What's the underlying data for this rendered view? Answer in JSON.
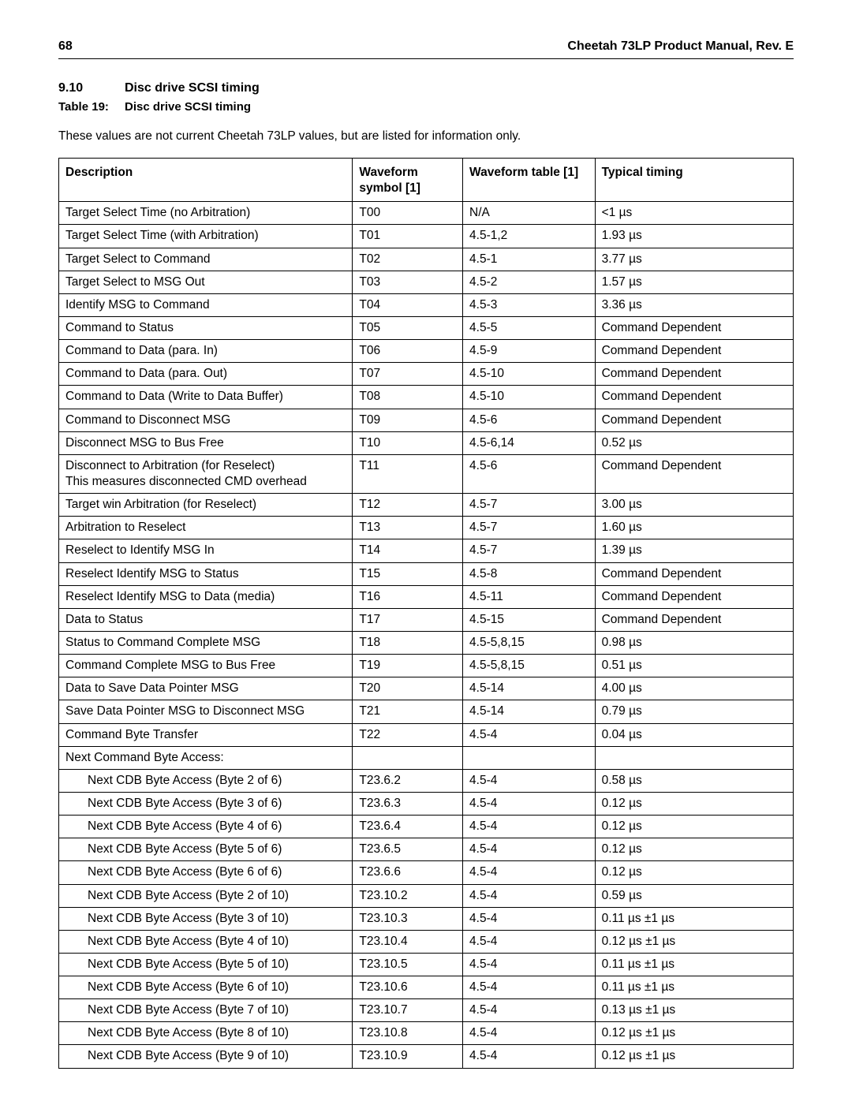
{
  "header": {
    "page_number": "68",
    "title": "Cheetah 73LP Product Manual, Rev. E"
  },
  "section": {
    "number": "9.10",
    "title": "Disc drive SCSI timing"
  },
  "tableCaption": {
    "label": "Table 19:",
    "title": "Disc drive SCSI timing"
  },
  "intro": "These values are not current Cheetah 73LP values, but are listed for information only.",
  "columns": [
    "Description",
    "Waveform symbol [1]",
    "Waveform table [1]",
    "Typical timing"
  ],
  "rows": [
    {
      "d": "Target Select Time (no Arbitration)",
      "s": "T00",
      "w": "N/A",
      "t": "<1 µs"
    },
    {
      "d": "Target Select Time (with Arbitration)",
      "s": "T01",
      "w": "4.5-1,2",
      "t": "1.93 µs"
    },
    {
      "d": "Target Select to Command",
      "s": "T02",
      "w": "4.5-1",
      "t": "3.77 µs"
    },
    {
      "d": "Target Select to MSG Out",
      "s": "T03",
      "w": "4.5-2",
      "t": "1.57 µs"
    },
    {
      "d": "Identify MSG to Command",
      "s": "T04",
      "w": "4.5-3",
      "t": "3.36 µs"
    },
    {
      "d": "Command to Status",
      "s": "T05",
      "w": "4.5-5",
      "t": "Command Dependent"
    },
    {
      "d": "Command to Data (para. In)",
      "s": "T06",
      "w": "4.5-9",
      "t": "Command Dependent"
    },
    {
      "d": "Command to Data (para. Out)",
      "s": "T07",
      "w": "4.5-10",
      "t": "Command Dependent"
    },
    {
      "d": "Command to Data (Write to Data Buffer)",
      "s": "T08",
      "w": "4.5-10",
      "t": "Command Dependent"
    },
    {
      "d": "Command to Disconnect MSG",
      "s": "T09",
      "w": "4.5-6",
      "t": "Command Dependent"
    },
    {
      "d": "Disconnect MSG to Bus Free",
      "s": "T10",
      "w": "4.5-6,14",
      "t": "0.52 µs"
    },
    {
      "d": "Disconnect to Arbitration (for Reselect)",
      "d2": "This measures disconnected CMD overhead",
      "s": "T11",
      "w": "4.5-6",
      "t": "Command Dependent"
    },
    {
      "d": "Target win Arbitration (for Reselect)",
      "s": "T12",
      "w": "4.5-7",
      "t": "3.00 µs"
    },
    {
      "d": "Arbitration to Reselect",
      "s": "T13",
      "w": "4.5-7",
      "t": "1.60 µs"
    },
    {
      "d": "Reselect to Identify MSG In",
      "s": "T14",
      "w": "4.5-7",
      "t": "1.39 µs"
    },
    {
      "d": "Reselect Identify MSG to Status",
      "s": "T15",
      "w": "4.5-8",
      "t": "Command Dependent"
    },
    {
      "d": "Reselect Identify MSG to Data (media)",
      "s": "T16",
      "w": "4.5-11",
      "t": "Command Dependent"
    },
    {
      "d": "Data to Status",
      "s": "T17",
      "w": "4.5-15",
      "t": "Command Dependent"
    },
    {
      "d": "Status to Command Complete MSG",
      "s": "T18",
      "w": "4.5-5,8,15",
      "t": "0.98 µs"
    },
    {
      "d": "Command Complete MSG to Bus Free",
      "s": "T19",
      "w": "4.5-5,8,15",
      "t": "0.51 µs"
    },
    {
      "d": "Data to Save Data Pointer MSG",
      "s": "T20",
      "w": "4.5-14",
      "t": "4.00 µs"
    },
    {
      "d": "Save Data Pointer MSG to Disconnect MSG",
      "s": "T21",
      "w": "4.5-14",
      "t": "0.79 µs"
    },
    {
      "d": "Command Byte Transfer",
      "s": "T22",
      "w": "4.5-4",
      "t": "0.04 µs"
    },
    {
      "d": "Next Command Byte Access:",
      "s": "",
      "w": "",
      "t": ""
    },
    {
      "d": "Next CDB Byte Access (Byte 2 of 6)",
      "indent": true,
      "s": "T23.6.2",
      "w": "4.5-4",
      "t": "0.58 µs"
    },
    {
      "d": "Next CDB Byte Access (Byte 3 of 6)",
      "indent": true,
      "s": "T23.6.3",
      "w": "4.5-4",
      "t": "0.12 µs"
    },
    {
      "d": "Next CDB Byte Access (Byte 4 of 6)",
      "indent": true,
      "s": "T23.6.4",
      "w": "4.5-4",
      "t": "0.12 µs"
    },
    {
      "d": "Next CDB Byte Access (Byte 5 of 6)",
      "indent": true,
      "s": "T23.6.5",
      "w": "4.5-4",
      "t": "0.12 µs"
    },
    {
      "d": "Next CDB Byte Access (Byte 6 of 6)",
      "indent": true,
      "s": "T23.6.6",
      "w": "4.5-4",
      "t": "0.12 µs"
    },
    {
      "d": "Next CDB Byte Access (Byte 2 of 10)",
      "indent": true,
      "s": "T23.10.2",
      "w": "4.5-4",
      "t": "0.59 µs"
    },
    {
      "d": "Next CDB Byte Access (Byte 3 of 10)",
      "indent": true,
      "s": "T23.10.3",
      "w": "4.5-4",
      "t": "0.11 µs ±1 µs"
    },
    {
      "d": "Next CDB Byte Access (Byte 4 of 10)",
      "indent": true,
      "s": "T23.10.4",
      "w": "4.5-4",
      "t": "0.12 µs ±1 µs"
    },
    {
      "d": "Next CDB Byte Access (Byte 5 of 10)",
      "indent": true,
      "s": "T23.10.5",
      "w": "4.5-4",
      "t": "0.11 µs ±1 µs"
    },
    {
      "d": "Next CDB Byte Access (Byte 6 of 10)",
      "indent": true,
      "s": "T23.10.6",
      "w": "4.5-4",
      "t": "0.11 µs ±1 µs"
    },
    {
      "d": "Next CDB Byte Access (Byte 7 of 10)",
      "indent": true,
      "s": "T23.10.7",
      "w": "4.5-4",
      "t": "0.13 µs ±1 µs"
    },
    {
      "d": "Next CDB Byte Access (Byte 8 of 10)",
      "indent": true,
      "s": "T23.10.8",
      "w": "4.5-4",
      "t": "0.12 µs ±1 µs"
    },
    {
      "d": "Next CDB Byte Access (Byte 9 of 10)",
      "indent": true,
      "s": "T23.10.9",
      "w": "4.5-4",
      "t": "0.12 µs ±1 µs"
    }
  ]
}
